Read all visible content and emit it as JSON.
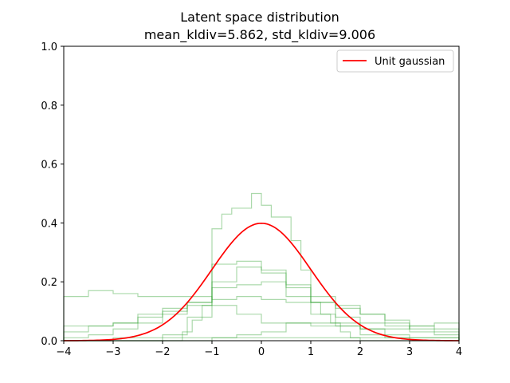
{
  "chart_data": {
    "type": "line",
    "title": "Latent space distribution",
    "subtitle": "mean_kldiv=5.862, std_kldiv=9.006",
    "xlabel": "",
    "ylabel": "",
    "xlim": [
      -4,
      4
    ],
    "ylim": [
      0,
      1.0
    ],
    "xticks": [
      -4,
      -3,
      -2,
      -1,
      0,
      1,
      2,
      3,
      4
    ],
    "xtick_labels": [
      "−4",
      "−3",
      "−2",
      "−1",
      "0",
      "1",
      "2",
      "3",
      "4"
    ],
    "yticks": [
      0.0,
      0.2,
      0.4,
      0.6,
      0.8,
      1.0
    ],
    "ytick_labels": [
      "0.0",
      "0.2",
      "0.4",
      "0.6",
      "0.8",
      "1.0"
    ],
    "grid": false,
    "legend_position": "top-right",
    "gaussian_series": {
      "name": "Unit gaussian",
      "color": "#ff0000",
      "mean": 0,
      "std": 1
    },
    "histogram_color": "#2ca02c",
    "histogram_opacity": 0.4,
    "histograms": [
      {
        "edges": [
          -4.0,
          -3.8,
          -3.6,
          -3.4,
          -3.2,
          -3.0,
          -2.8,
          -2.6,
          -2.4,
          -2.2,
          -2.0,
          -1.8,
          -1.6,
          -1.4,
          -1.2,
          -1.0,
          -0.8,
          -0.6,
          -0.4,
          -0.2,
          0.0,
          0.2,
          0.4,
          0.6,
          0.8,
          1.0,
          1.2,
          1.4,
          1.6,
          1.8,
          2.0,
          2.2,
          2.4,
          2.6,
          2.8,
          3.0,
          3.2,
          3.4,
          3.6,
          3.8,
          4.0
        ],
        "values": [
          0.0,
          0.0,
          0.0,
          0.0,
          0.0,
          0.0,
          0.0,
          0.0,
          0.0,
          0.0,
          0.0,
          0.0,
          0.03,
          0.07,
          0.12,
          0.38,
          0.43,
          0.45,
          0.45,
          0.5,
          0.46,
          0.42,
          0.42,
          0.34,
          0.24,
          0.13,
          0.09,
          0.06,
          0.03,
          0.01,
          0.0,
          0.0,
          0.0,
          0.0,
          0.0,
          0.0,
          0.0,
          0.0,
          0.0,
          0.0
        ]
      },
      {
        "edges": [
          -4.0,
          -3.5,
          -3.0,
          -2.5,
          -2.0,
          -1.5,
          -1.0,
          -0.5,
          0.0,
          0.5,
          1.0,
          1.5,
          2.0,
          2.5,
          3.0,
          3.5,
          4.0
        ],
        "values": [
          0.0,
          0.0,
          0.0,
          0.0,
          0.02,
          0.08,
          0.26,
          0.27,
          0.23,
          0.15,
          0.09,
          0.05,
          0.02,
          0.01,
          0.0,
          0.0
        ]
      },
      {
        "edges": [
          -4.0,
          -3.5,
          -3.0,
          -2.5,
          -2.0,
          -1.5,
          -1.0,
          -0.5,
          0.0,
          0.5,
          1.0,
          1.5,
          2.0,
          2.5,
          3.0,
          3.5,
          4.0
        ],
        "values": [
          0.01,
          0.02,
          0.04,
          0.06,
          0.09,
          0.13,
          0.2,
          0.25,
          0.24,
          0.19,
          0.13,
          0.08,
          0.04,
          0.02,
          0.01,
          0.01
        ]
      },
      {
        "edges": [
          -4.0,
          -3.5,
          -3.0,
          -2.5,
          -2.0,
          -1.5,
          -1.0,
          -0.5,
          0.0,
          0.5,
          1.0,
          1.5,
          2.0,
          2.5,
          3.0,
          3.5,
          4.0
        ],
        "values": [
          0.15,
          0.17,
          0.16,
          0.15,
          0.15,
          0.15,
          0.14,
          0.15,
          0.14,
          0.13,
          0.13,
          0.11,
          0.09,
          0.07,
          0.05,
          0.04
        ]
      },
      {
        "edges": [
          -4.0,
          -3.5,
          -3.0,
          -2.5,
          -2.0,
          -1.5,
          -1.0,
          -0.5,
          0.0,
          0.5,
          1.0,
          1.5,
          2.0,
          2.5,
          3.0,
          3.5,
          4.0
        ],
        "values": [
          0.03,
          0.05,
          0.06,
          0.08,
          0.1,
          0.13,
          0.18,
          0.19,
          0.2,
          0.18,
          0.15,
          0.12,
          0.09,
          0.06,
          0.04,
          0.03
        ]
      },
      {
        "edges": [
          -4.0,
          -3.5,
          -3.0,
          -2.5,
          -2.0,
          -1.5,
          -1.0,
          -0.5,
          0.0,
          0.5,
          1.0,
          1.5,
          2.0,
          2.5,
          3.0,
          3.5,
          4.0
        ],
        "values": [
          0.05,
          0.05,
          0.06,
          0.09,
          0.11,
          0.12,
          0.12,
          0.09,
          0.06,
          0.06,
          0.05,
          0.05,
          0.04,
          0.04,
          0.05,
          0.06
        ]
      },
      {
        "edges": [
          -4.0,
          -3.5,
          -3.0,
          -2.5,
          -2.0,
          -1.5,
          -1.0,
          -0.5,
          0.0,
          0.5,
          1.0,
          1.5,
          2.0,
          2.5,
          3.0,
          3.5,
          4.0
        ],
        "values": [
          0.0,
          0.0,
          0.0,
          0.0,
          0.0,
          0.0,
          0.01,
          0.02,
          0.03,
          0.06,
          0.06,
          0.06,
          0.06,
          0.05,
          0.03,
          0.02
        ]
      },
      {
        "edges": [
          -4.0,
          -3.0,
          -2.0,
          -1.0,
          0.0,
          1.0,
          2.0,
          3.0,
          4.0
        ],
        "values": [
          0.0,
          0.01,
          0.01,
          0.01,
          0.01,
          0.01,
          0.01,
          0.01
        ]
      }
    ]
  }
}
